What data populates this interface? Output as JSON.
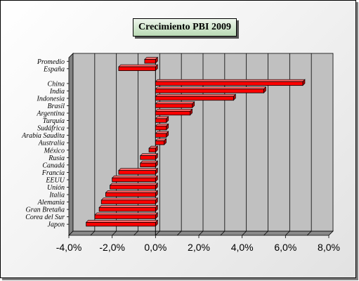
{
  "chart_data": {
    "type": "bar",
    "orientation": "horizontal",
    "title": "Crecimiento PBI 2009",
    "xlabel": "",
    "ylabel": "",
    "xlim": [
      -0.04,
      0.08
    ],
    "x_ticks": [
      -0.04,
      -0.02,
      0,
      0.02,
      0.04,
      0.06,
      0.08
    ],
    "x_tick_labels": [
      "-4,0%",
      "-2,0%",
      "0,0%",
      "2,0%",
      "4,0%",
      "6,0%",
      "8,0%"
    ],
    "grid": true,
    "legend": false,
    "bar_color": "#ff0000",
    "plot_background": "#c0c0c0",
    "categories": [
      "Promedio",
      "España",
      "China",
      "India",
      "Indonesia",
      "Brasil",
      "Argentina",
      "Turquía",
      "Sudáfrica",
      "Arabia Saudita",
      "Australia",
      "México",
      "Rusia",
      "Canadá",
      "Francia",
      "EEUU",
      "Unión",
      "Italia",
      "Alemania",
      "Gran Bretaña",
      "Corea del Sur",
      "Japon"
    ],
    "values": [
      -0.005,
      -0.017,
      0.068,
      0.05,
      0.036,
      0.017,
      0.016,
      0.005,
      0.005,
      0.005,
      0.004,
      -0.003,
      -0.007,
      -0.007,
      -0.017,
      -0.02,
      -0.021,
      -0.023,
      -0.025,
      -0.026,
      -0.028,
      -0.032
    ]
  }
}
